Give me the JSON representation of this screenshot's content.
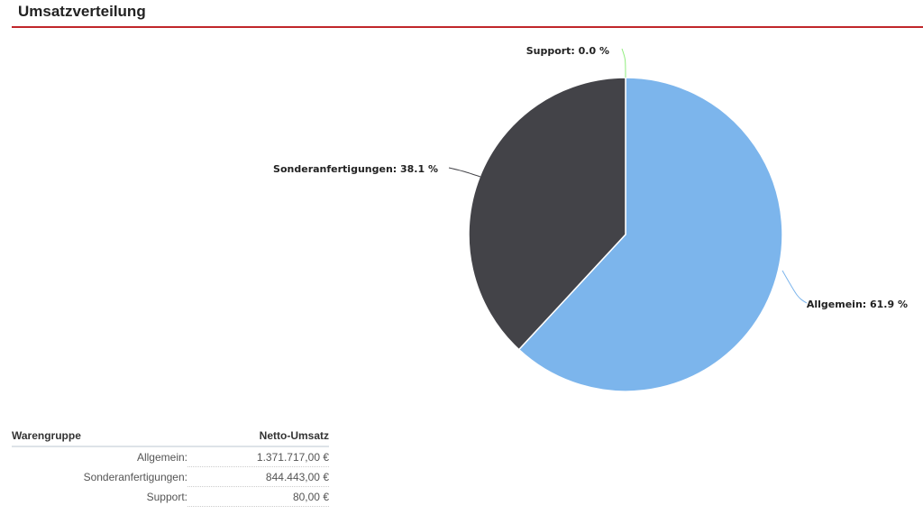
{
  "header": {
    "title": "Umsatzverteilung",
    "accent_color": "#c0262a"
  },
  "chart_data": {
    "type": "pie",
    "title": "Umsatzverteilung",
    "categories": [
      "Allgemein",
      "Sonderanfertigungen",
      "Support"
    ],
    "values": [
      61.9,
      38.1,
      0.0
    ],
    "unit": "%",
    "colors": [
      "#7cb5ec",
      "#434348",
      "#90ed7d"
    ],
    "data_labels": [
      "Allgemein: 61.9 %",
      "Sonderanfertigungen: 38.1 %",
      "Support: 0.0 %"
    ]
  },
  "table": {
    "headers": [
      "Warengruppe",
      "Netto-Umsatz"
    ],
    "rows": [
      {
        "group": "Allgemein:",
        "value": "1.371.717,00 €"
      },
      {
        "group": "Sonderanfertigungen:",
        "value": "844.443,00 €"
      },
      {
        "group": "Support:",
        "value": "80,00 €"
      }
    ]
  }
}
